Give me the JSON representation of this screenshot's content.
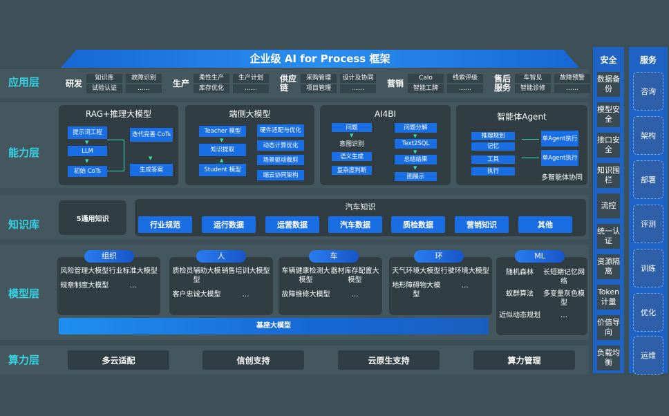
{
  "title": "企业级 AI for Process 框架",
  "layers": {
    "app": "应用层",
    "ability": "能力层",
    "knowledge": "知识库",
    "model": "模型层",
    "compute": "算力层"
  },
  "app": [
    {
      "label": "研发",
      "items": [
        "知识库",
        "故障识别",
        "试验认证",
        "……"
      ]
    },
    {
      "label": "生产",
      "items": [
        "柔性生产",
        "生产计划",
        "库存优化",
        "……"
      ]
    },
    {
      "label": "供应链",
      "items": [
        "采购管理",
        "设计及协同",
        "项目管理",
        "……"
      ]
    },
    {
      "label": "营销",
      "items": [
        "Calo",
        "线索评级",
        "智能工牌",
        "……"
      ]
    },
    {
      "label": "售后服务",
      "items": [
        "车智见",
        "故障预警",
        "智能诊修",
        "……"
      ]
    }
  ],
  "ability": {
    "rag": {
      "title": "RAG+推理大模型",
      "items": [
        "提示词工程",
        "LLM",
        "初始 CoTs",
        "迭代完善 CoTs",
        "生成答案"
      ]
    },
    "edge": {
      "title": "端侧大模型",
      "items": [
        "Teacher 模型",
        "知识提取",
        "Student 模型",
        "硬件适配与优化",
        "动态计算优化",
        "场景驱动裁剪",
        "端云协同架构"
      ]
    },
    "ai4bi": {
      "title": "AI4BI",
      "items": [
        "问题",
        "意图识别",
        "语义生成",
        "复杂度判断",
        "问题分解",
        "Text2SQL",
        "总结结果",
        "图展示"
      ]
    },
    "agent": {
      "title": "智能体Agent",
      "items": [
        "推理规划",
        "记忆",
        "工具",
        "执行",
        "单Agent执行",
        "单Agent执行"
      ],
      "caption": "多智能体协同"
    }
  },
  "knowledge": {
    "general": "5通用知识",
    "auto_title": "汽车知识",
    "items": [
      "行业规范",
      "运行数据",
      "运营数据",
      "汽车数据",
      "质检数据",
      "营销知识",
      "其他"
    ]
  },
  "model": {
    "groups": [
      {
        "label": "组织",
        "items": [
          "风险管理大模型",
          "行业标准大模型",
          "规章制度大模型",
          "…"
        ]
      },
      {
        "label": "人",
        "items": [
          "质检员辅助大模型",
          "销售培训大模型",
          "客户忠诚大模型",
          "…"
        ]
      },
      {
        "label": "车",
        "items": [
          "车辆健康检测大模型",
          "器材库存配置大模型",
          "故障维修大模型",
          "…"
        ]
      },
      {
        "label": "环",
        "items": [
          "天气环境大模型",
          "行驶环境大模型",
          "地形障碍物大模型",
          "…"
        ]
      },
      {
        "label": "ML",
        "items": [
          "随机森林",
          "长短期记忆网络",
          "蚁群算法",
          "多变量灰色模型",
          "近似动态规划",
          "…"
        ]
      }
    ],
    "base": "基座大模型"
  },
  "compute": [
    "多云适配",
    "信创支持",
    "云原生支持",
    "算力管理"
  ],
  "security": {
    "title": "安全",
    "items": [
      "数据备份",
      "模型安全",
      "接口安全",
      "知识围栏",
      "流控",
      "统一认证",
      "资源隔离",
      "Token计量",
      "价值导向",
      "负载均衡"
    ]
  },
  "service": {
    "title": "服务",
    "items": [
      "咨询",
      "架构",
      "部署",
      "评测",
      "训练",
      "优化",
      "运维"
    ]
  },
  "colors": {
    "background": "#3d4f57",
    "panel": "#303e44",
    "accent_blue": "#1a6ee3",
    "layer_label": "#35d3e4"
  }
}
